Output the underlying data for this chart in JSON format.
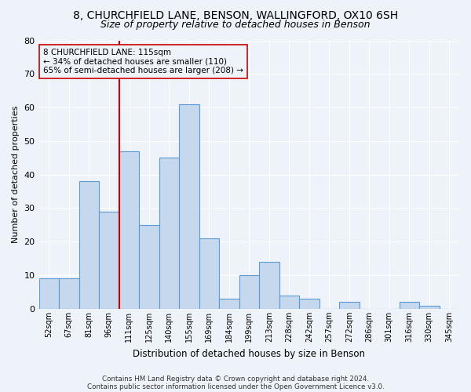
{
  "title1": "8, CHURCHFIELD LANE, BENSON, WALLINGFORD, OX10 6SH",
  "title2": "Size of property relative to detached houses in Benson",
  "xlabel": "Distribution of detached houses by size in Benson",
  "ylabel": "Number of detached properties",
  "categories": [
    "52sqm",
    "67sqm",
    "81sqm",
    "96sqm",
    "111sqm",
    "125sqm",
    "140sqm",
    "155sqm",
    "169sqm",
    "184sqm",
    "199sqm",
    "213sqm",
    "228sqm",
    "242sqm",
    "257sqm",
    "272sqm",
    "286sqm",
    "301sqm",
    "316sqm",
    "330sqm",
    "345sqm"
  ],
  "values": [
    9,
    9,
    38,
    29,
    47,
    25,
    45,
    61,
    21,
    3,
    10,
    14,
    4,
    3,
    0,
    2,
    0,
    0,
    2,
    1,
    0
  ],
  "bar_color": "#c5d8ed",
  "bar_edge_color": "#5b9bd5",
  "vline_bar_index": 4,
  "vline_color": "#cc0000",
  "annotation_line1": "8 CHURCHFIELD LANE: 115sqm",
  "annotation_line2": "← 34% of detached houses are smaller (110)",
  "annotation_line3": "65% of semi-detached houses are larger (208) →",
  "annotation_box_edge": "#cc0000",
  "ylim": [
    0,
    80
  ],
  "yticks": [
    0,
    10,
    20,
    30,
    40,
    50,
    60,
    70,
    80
  ],
  "footer1": "Contains HM Land Registry data © Crown copyright and database right 2024.",
  "footer2": "Contains public sector information licensed under the Open Government Licence v3.0.",
  "bg_color": "#eef2f9",
  "grid_color": "#ffffff",
  "title1_fontsize": 10,
  "title2_fontsize": 9,
  "bar_width": 1.0
}
